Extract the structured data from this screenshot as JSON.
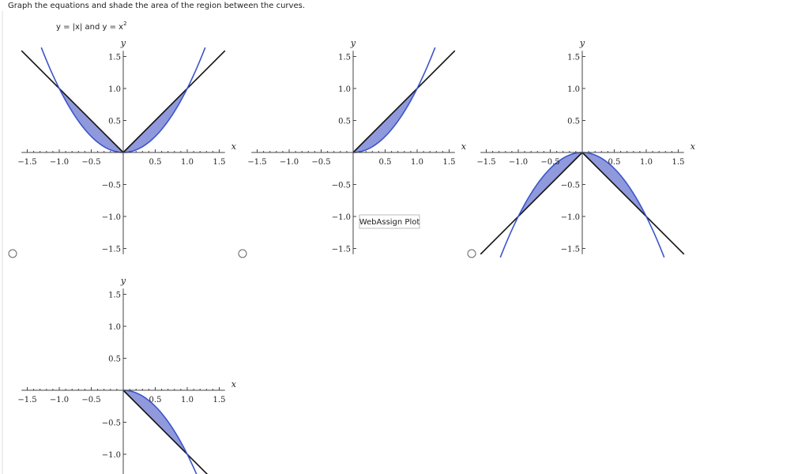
{
  "question": "Graph the equations and shade the area of the region between the curves.",
  "equation": {
    "text": "y = |x| and y = x",
    "superscript": "2"
  },
  "tooltip": "WebAssign Plot",
  "plots": [
    {
      "x_label": "x",
      "y_label": "y",
      "xticks": [
        {
          "value": -1.5,
          "label": "−1.5"
        },
        {
          "value": -1,
          "label": "−1.0"
        },
        {
          "value": -0.5,
          "label": "−0.5"
        },
        0.5,
        {
          "value": 1,
          "label": "1.0"
        },
        1.5
      ],
      "yticks": [
        1.5,
        {
          "value": 1,
          "label": "1.0"
        },
        0.5,
        {
          "value": -0.5,
          "label": "−0.5"
        },
        {
          "value": -1,
          "label": "−1.0"
        },
        {
          "value": -1.5,
          "label": "−1.5"
        }
      ]
    },
    {
      "x_label": "x",
      "y_label": "y",
      "xticks": [
        {
          "value": -1.5,
          "label": "−1.5"
        },
        {
          "value": -1,
          "label": "−1.0"
        },
        {
          "value": -0.5,
          "label": "−0.5"
        },
        0.5,
        {
          "value": 1,
          "label": "1.0"
        },
        1.5
      ],
      "yticks": [
        1.5,
        {
          "value": 1,
          "label": "1.0"
        },
        0.5,
        {
          "value": -0.5,
          "label": "−0.5"
        },
        {
          "value": -1,
          "label": "−1.0"
        },
        {
          "value": -1.5,
          "label": "−1.5"
        }
      ]
    },
    {
      "x_label": "x",
      "y_label": "y",
      "xticks": [
        {
          "value": -1.5,
          "label": "−1.5"
        },
        {
          "value": -1,
          "label": "−1.0"
        },
        {
          "value": -0.5,
          "label": "−0.5"
        },
        0.5,
        {
          "value": 1,
          "label": "1.0"
        },
        1.5
      ],
      "yticks": [
        1.5,
        {
          "value": 1,
          "label": "1.0"
        },
        0.5,
        {
          "value": -0.5,
          "label": "−0.5"
        },
        {
          "value": -1,
          "label": "−1.0"
        },
        {
          "value": -1.5,
          "label": "−1.5"
        }
      ]
    },
    {
      "x_label": "x",
      "y_label": "y",
      "xticks": [
        {
          "value": -1.5,
          "label": "−1.5"
        },
        {
          "value": -1,
          "label": "−1.0"
        },
        {
          "value": -0.5,
          "label": "−0.5"
        },
        0.5,
        {
          "value": 1,
          "label": "1.0"
        },
        1.5
      ],
      "yticks": [
        1.5,
        {
          "value": 1,
          "label": "1.0"
        },
        0.5,
        {
          "value": -0.5,
          "label": "−0.5"
        },
        {
          "value": -1,
          "label": "−1.0"
        }
      ]
    }
  ]
}
